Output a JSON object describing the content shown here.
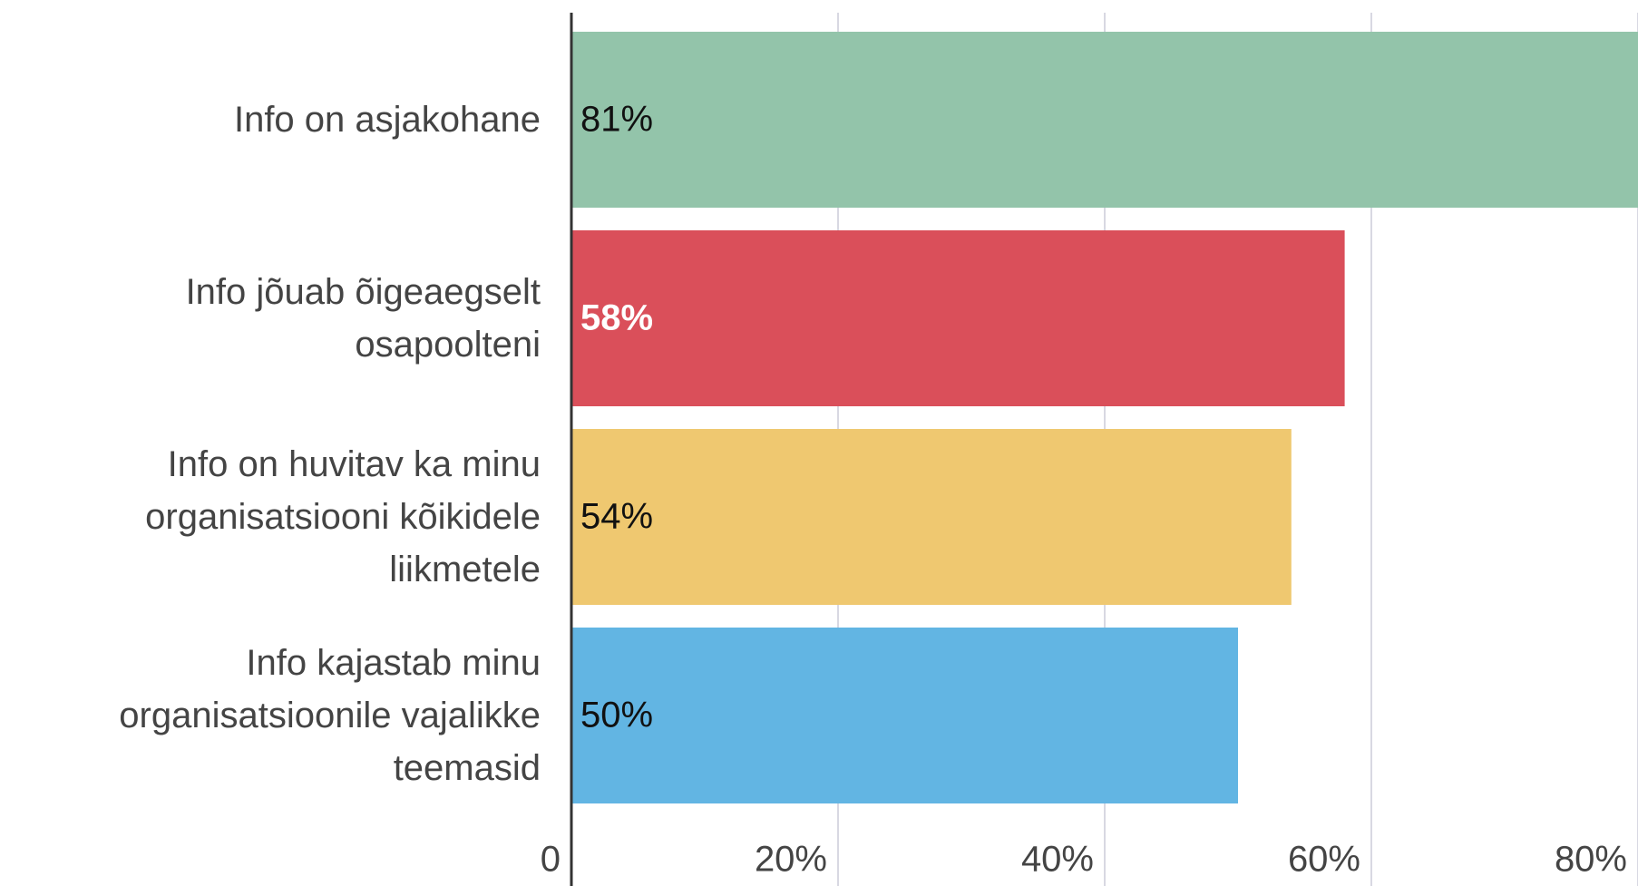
{
  "chart_data": {
    "type": "barh",
    "categories": [
      "Info on asjakohane",
      "Info jõuab õigeaegselt osapoolteni",
      "Info on huvitav ka minu organisatsiooni kõikidele liikmetele",
      "Info kajastab minu organisatsioonile vajalikke teemasid"
    ],
    "values": [
      81,
      58,
      54,
      50
    ],
    "value_labels": [
      "81%",
      "58%",
      "54%",
      "50%"
    ],
    "colors": [
      "#93c4aa",
      "#da4f5a",
      "#efc870",
      "#62b5e3"
    ],
    "value_label_colors": [
      "#111111",
      "#ffffff",
      "#111111",
      "#111111"
    ],
    "xlim": [
      0,
      80
    ],
    "xticks": [
      0,
      {
        "value": 20,
        "label": "20%"
      },
      {
        "value": 40,
        "label": "40%"
      },
      {
        "value": 60,
        "label": "60%"
      },
      {
        "value": 80,
        "label": "80%"
      }
    ],
    "grid": true
  }
}
